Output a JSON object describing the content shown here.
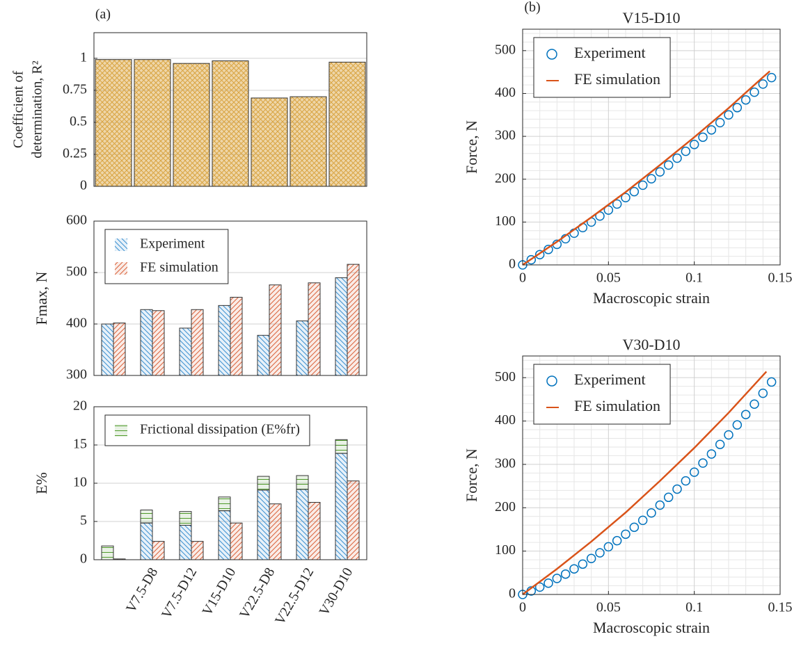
{
  "chart_data": [
    {
      "type": "bar",
      "panel_label": "(a)",
      "ylabel": [
        "Coefficient of",
        "determination, R²"
      ],
      "values": [
        0.99,
        0.99,
        0.96,
        0.98,
        0.69,
        0.7,
        0.97
      ],
      "color": "#d9a441",
      "hatch": "crosshatch",
      "ylim": [
        0,
        1.2
      ],
      "yticks": [
        0,
        0.25,
        0.5,
        0.75,
        1
      ],
      "grid": true
    },
    {
      "type": "grouped_bar",
      "ylabel": "Fmax, N",
      "series": [
        {
          "name": "Experiment",
          "color": "#3a8fd0",
          "hatch": "backslash",
          "values": [
            400,
            428,
            392,
            436,
            378,
            406,
            490
          ]
        },
        {
          "name": "FE simulation",
          "color": "#d9623b",
          "hatch": "slash",
          "values": [
            402,
            426,
            428,
            452,
            476,
            480,
            516
          ]
        }
      ],
      "ylim": [
        300,
        600
      ],
      "yticks": [
        300,
        400,
        500,
        600
      ],
      "grid": true,
      "legend": "upper left"
    },
    {
      "type": "stacked_bar",
      "ylabel": "E%",
      "categories": [
        null,
        "V7.5-D8",
        "V7.5-D12",
        "V15-D10",
        "V22.5-D8",
        "V22.5-D12",
        "V30-D10"
      ],
      "series": [
        {
          "color": "#3a8fd0",
          "hatch": "backslash",
          "group": 0,
          "values": [
            0,
            4.8,
            4.5,
            6.4,
            9.1,
            9.2,
            13.9
          ]
        },
        {
          "name": "Frictional dissipation (E%fr)",
          "color": "#4f9a2a",
          "hatch": "horizontal",
          "group": 0,
          "values": [
            1.8,
            1.7,
            1.8,
            1.8,
            1.8,
            1.8,
            1.8
          ]
        },
        {
          "color": "#d9623b",
          "hatch": "slash",
          "group": 1,
          "values": [
            0.1,
            2.4,
            2.4,
            4.8,
            7.3,
            7.5,
            10.3
          ]
        }
      ],
      "ylim": [
        0,
        20
      ],
      "yticks": [
        0,
        5,
        10,
        15,
        20
      ],
      "grid": true,
      "legend": "upper left"
    },
    {
      "type": "scatter_line",
      "panel_label": "(b)",
      "title": "V15-D10",
      "xlabel": "Macroscopic strain",
      "ylabel": "Force, N",
      "series": [
        {
          "name": "Experiment",
          "marker": "circle",
          "color": "#0072bd",
          "x": [
            0,
            0.005,
            0.01,
            0.015,
            0.02,
            0.025,
            0.03,
            0.035,
            0.04,
            0.045,
            0.05,
            0.055,
            0.06,
            0.065,
            0.07,
            0.075,
            0.08,
            0.085,
            0.09,
            0.095,
            0.1,
            0.105,
            0.11,
            0.115,
            0.12,
            0.125,
            0.13,
            0.135,
            0.14,
            0.145
          ],
          "values": [
            0,
            12,
            24,
            36,
            48,
            61,
            74,
            87,
            100,
            114,
            128,
            142,
            157,
            171,
            186,
            201,
            217,
            233,
            249,
            265,
            281,
            298,
            315,
            332,
            350,
            367,
            385,
            403,
            422,
            437
          ]
        },
        {
          "name": "FE simulation",
          "marker": "line",
          "color": "#d95319",
          "x": [
            0,
            0.02,
            0.04,
            0.06,
            0.08,
            0.1,
            0.12,
            0.14,
            0.144
          ],
          "values": [
            0,
            54,
            111,
            170,
            233,
            298,
            366,
            438,
            452
          ]
        }
      ],
      "xlim": [
        0,
        0.15
      ],
      "xticks": [
        0,
        0.05,
        0.1,
        0.15
      ],
      "ylim": [
        0,
        550
      ],
      "yticks": [
        0,
        100,
        200,
        300,
        400,
        500
      ],
      "grid": true,
      "minor_grid": true,
      "legend": "upper left"
    },
    {
      "type": "scatter_line",
      "title": "V30-D10",
      "xlabel": "Macroscopic strain",
      "ylabel": "Force, N",
      "series": [
        {
          "name": "Experiment",
          "marker": "circle",
          "color": "#0072bd",
          "x": [
            0,
            0.005,
            0.01,
            0.015,
            0.02,
            0.025,
            0.03,
            0.035,
            0.04,
            0.045,
            0.05,
            0.055,
            0.06,
            0.065,
            0.07,
            0.075,
            0.08,
            0.085,
            0.09,
            0.095,
            0.1,
            0.105,
            0.11,
            0.115,
            0.12,
            0.125,
            0.13,
            0.135,
            0.14,
            0.145
          ],
          "values": [
            0,
            8,
            17,
            26,
            37,
            47,
            59,
            70,
            83,
            96,
            110,
            124,
            139,
            155,
            171,
            188,
            206,
            224,
            243,
            262,
            282,
            303,
            324,
            346,
            368,
            391,
            415,
            439,
            464,
            490
          ]
        },
        {
          "name": "FE simulation",
          "marker": "line",
          "color": "#d95319",
          "x": [
            0,
            0.02,
            0.04,
            0.06,
            0.08,
            0.1,
            0.12,
            0.142
          ],
          "values": [
            0,
            59,
            122,
            189,
            262,
            338,
            419,
            514
          ]
        }
      ],
      "xlim": [
        0,
        0.15
      ],
      "xticks": [
        0,
        0.05,
        0.1,
        0.15
      ],
      "ylim": [
        0,
        550
      ],
      "yticks": [
        0,
        100,
        200,
        300,
        400,
        500
      ],
      "grid": true,
      "minor_grid": true,
      "legend": "upper left"
    }
  ]
}
